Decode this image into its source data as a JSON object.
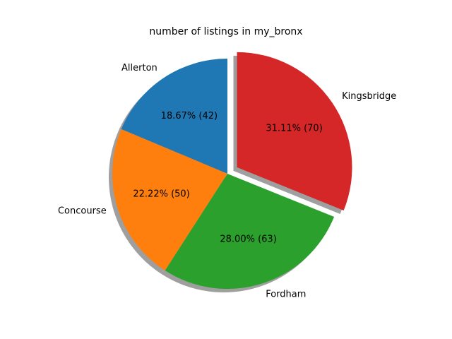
{
  "chart_data": {
    "type": "pie",
    "title": "number of listings in my_bronx",
    "slices": [
      {
        "label": "Allerton",
        "value": 42,
        "percent_text": "18.67%  (42)",
        "color": "#1f77b4",
        "explode": false
      },
      {
        "label": "Concourse",
        "value": 50,
        "percent_text": "22.22%  (50)",
        "color": "#ff7f0e",
        "explode": false
      },
      {
        "label": "Fordham",
        "value": 63,
        "percent_text": "28.00%  (63)",
        "color": "#2ca02c",
        "explode": false
      },
      {
        "label": "Kingsbridge",
        "value": 70,
        "percent_text": "31.11%  (70)",
        "color": "#d62728",
        "explode": true
      }
    ],
    "start_angle_deg": 90,
    "direction": "counterclockwise",
    "shadow": true,
    "shadow_color": "#7f7f7f"
  }
}
